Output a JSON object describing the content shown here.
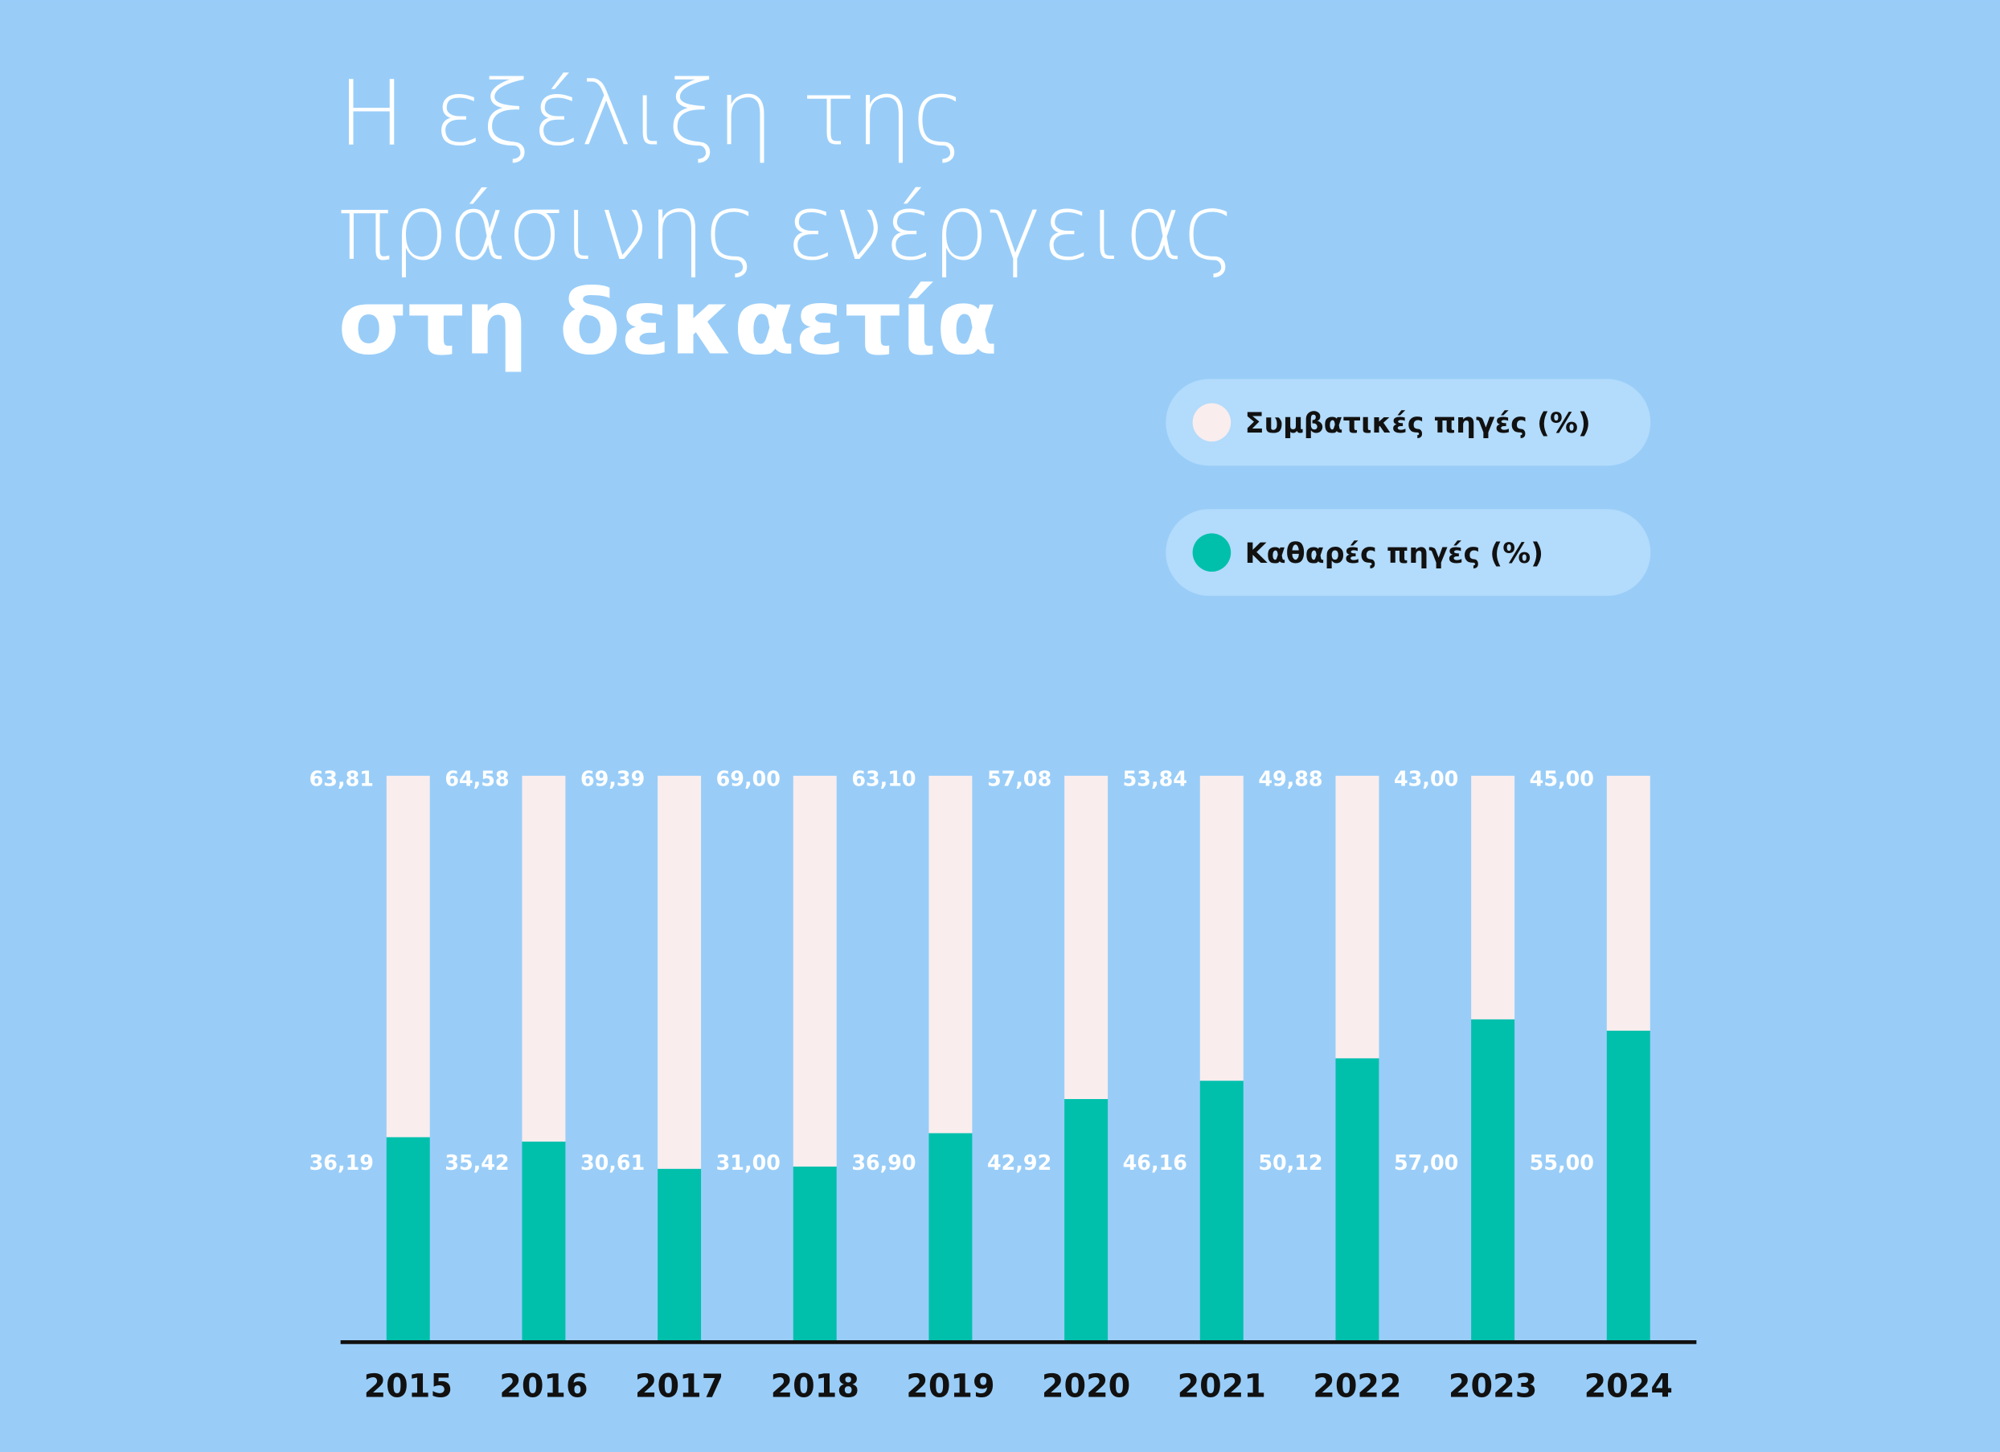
{
  "chart_data": {
    "type": "stacked_bar",
    "title": [
      "Η εξέλιξη της",
      "πράσινης ενέργειας",
      "στη δεκαετία"
    ],
    "categories": [
      "2015",
      "2016",
      "2017",
      "2018",
      "2019",
      "2020",
      "2021",
      "2022",
      "2023",
      "2024"
    ],
    "series": [
      {
        "name": "Συμβατικές πηγές (%)",
        "color": "#f9eded",
        "values": [
          63.81,
          64.58,
          69.39,
          69.0,
          63.1,
          57.08,
          53.84,
          49.88,
          43.0,
          45.0
        ],
        "value_labels": [
          "63,81",
          "64,58",
          "69,39",
          "69,00",
          "63,10",
          "57,08",
          "53,84",
          "49,88",
          "43,00",
          "45,00"
        ]
      },
      {
        "name": "Καθαρές πηγές (%)",
        "color": "#00c0ac",
        "values": [
          36.19,
          35.42,
          30.61,
          31.0,
          36.9,
          42.92,
          46.16,
          50.12,
          57.0,
          55.0
        ],
        "value_labels": [
          "36,19",
          "35,42",
          "30,61",
          "31,00",
          "36,90",
          "42,92",
          "46,16",
          "50,12",
          "57,00",
          "55,00"
        ]
      }
    ],
    "ylim": [
      0,
      100
    ],
    "grid": false,
    "legend": "top-right"
  }
}
